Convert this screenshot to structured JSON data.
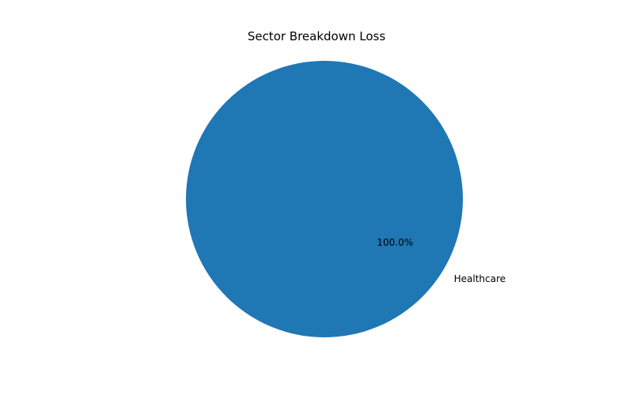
{
  "chart_data": {
    "type": "pie",
    "title": "Sector Breakdown Loss",
    "categories": [
      "Healthcare"
    ],
    "values": [
      100.0
    ],
    "percent_labels": [
      "100.0%"
    ],
    "colors": [
      "#1f77b4"
    ]
  }
}
